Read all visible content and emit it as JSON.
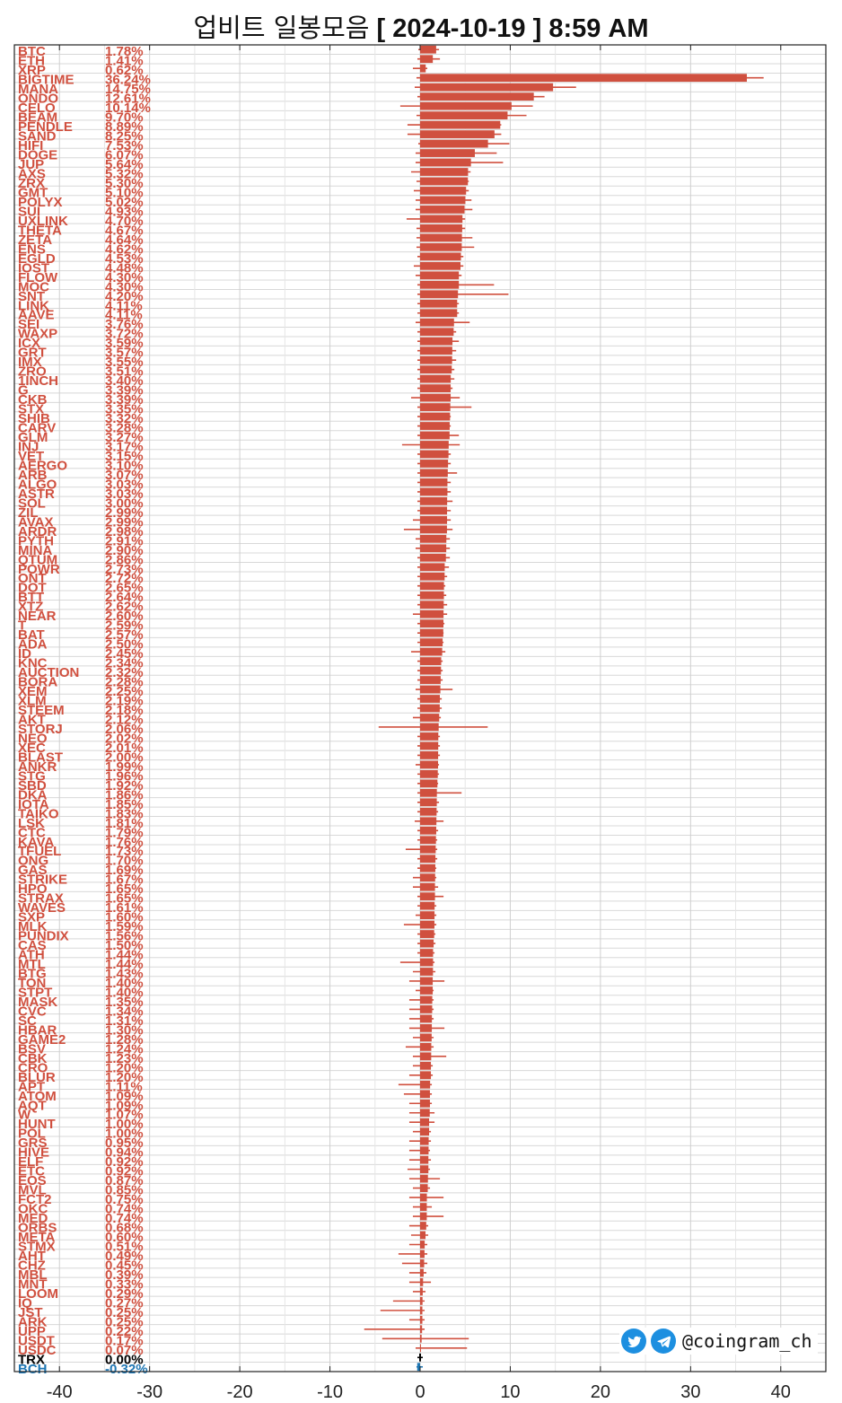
{
  "title": {
    "korean": "업비트 일봉모음",
    "date": "[ 2024-10-19 ]  8:59 AM"
  },
  "brand": {
    "handle": "@coingram_ch",
    "icons": [
      "twitter-icon",
      "telegram-icon"
    ]
  },
  "colors": {
    "up": "#d0503f",
    "flat": "#000000",
    "down": "#1f77b4",
    "grid": "#d8d8d8"
  },
  "chart_data": {
    "type": "bar",
    "orientation": "horizontal",
    "xlim": [
      -45,
      45
    ],
    "xticks": [
      -40,
      -30,
      -20,
      -10,
      0,
      10,
      20,
      30,
      40
    ],
    "grid": true,
    "categories": [
      "BTC",
      "ETH",
      "XRP",
      "BIGTIME",
      "MANA",
      "ONDO",
      "CELO",
      "BEAM",
      "PENDLE",
      "SAND",
      "HIFI",
      "DOGE",
      "JUP",
      "AXS",
      "ZRX",
      "GMT",
      "POLYX",
      "SUI",
      "UXLINK",
      "THETA",
      "ZETA",
      "ENS",
      "EGLD",
      "IOST",
      "FLOW",
      "MOC",
      "SNT",
      "LINK",
      "AAVE",
      "SEI",
      "WAXP",
      "ICX",
      "GRT",
      "IMX",
      "ZRO",
      "1INCH",
      "G",
      "CKB",
      "STX",
      "SHIB",
      "CARV",
      "GLM",
      "INJ",
      "VET",
      "AERGO",
      "ARB",
      "ALGO",
      "ASTR",
      "SOL",
      "ZIL",
      "AVAX",
      "ARDR",
      "PYTH",
      "MINA",
      "QTUM",
      "POWR",
      "ONT",
      "DOT",
      "BTT",
      "XTZ",
      "NEAR",
      "T",
      "BAT",
      "ADA",
      "ID",
      "KNC",
      "AUCTION",
      "BORA",
      "XEM",
      "XLM",
      "STEEM",
      "AKT",
      "STORJ",
      "NEO",
      "XEC",
      "BLAST",
      "ANKR",
      "STG",
      "SBD",
      "DKA",
      "IOTA",
      "TAIKO",
      "LSK",
      "CTC",
      "KAVA",
      "TFUEL",
      "ONG",
      "GAS",
      "STRIKE",
      "HPO",
      "STRAX",
      "WAVES",
      "SXP",
      "MLK",
      "PUNDIX",
      "CAS",
      "ATH",
      "MTL",
      "BTG",
      "TON",
      "STPT",
      "MASK",
      "CVC",
      "SC",
      "HBAR",
      "GAME2",
      "BSV",
      "CBK",
      "CRO",
      "BLUR",
      "APT",
      "ATOM",
      "AQT",
      "W",
      "HUNT",
      "POL",
      "GRS",
      "HIVE",
      "ELF",
      "ETC",
      "EOS",
      "MVL",
      "FCT2",
      "OKC",
      "MED",
      "ORBS",
      "META",
      "STMX",
      "AHT",
      "CHZ",
      "MBL",
      "MNT",
      "LOOM",
      "IQ",
      "JST",
      "ARK",
      "UPP",
      "USDT",
      "USDC",
      "TRX",
      "BCH"
    ],
    "values": [
      1.78,
      1.41,
      0.62,
      36.24,
      14.75,
      12.61,
      10.14,
      9.7,
      8.89,
      8.25,
      7.53,
      6.07,
      5.64,
      5.32,
      5.3,
      5.1,
      5.02,
      4.93,
      4.7,
      4.67,
      4.64,
      4.62,
      4.53,
      4.48,
      4.3,
      4.3,
      4.2,
      4.11,
      4.11,
      3.76,
      3.72,
      3.59,
      3.57,
      3.55,
      3.51,
      3.4,
      3.39,
      3.39,
      3.35,
      3.32,
      3.28,
      3.27,
      3.17,
      3.15,
      3.1,
      3.07,
      3.03,
      3.03,
      3.0,
      2.99,
      2.99,
      2.98,
      2.91,
      2.9,
      2.86,
      2.73,
      2.72,
      2.65,
      2.64,
      2.62,
      2.6,
      2.59,
      2.57,
      2.5,
      2.45,
      2.34,
      2.32,
      2.28,
      2.25,
      2.19,
      2.18,
      2.12,
      2.06,
      2.02,
      2.01,
      2.0,
      1.99,
      1.96,
      1.92,
      1.86,
      1.85,
      1.83,
      1.81,
      1.79,
      1.76,
      1.73,
      1.7,
      1.69,
      1.67,
      1.65,
      1.65,
      1.61,
      1.6,
      1.59,
      1.56,
      1.5,
      1.44,
      1.44,
      1.43,
      1.4,
      1.4,
      1.35,
      1.34,
      1.31,
      1.3,
      1.28,
      1.24,
      1.23,
      1.2,
      1.2,
      1.11,
      1.09,
      1.09,
      1.07,
      1.0,
      1.0,
      0.95,
      0.94,
      0.92,
      0.92,
      0.87,
      0.85,
      0.75,
      0.74,
      0.74,
      0.68,
      0.6,
      0.51,
      0.49,
      0.45,
      0.39,
      0.33,
      0.29,
      0.27,
      0.25,
      0.25,
      0.22,
      0.17,
      0.07,
      0.0,
      -0.32
    ],
    "value_labels": [
      "1.78%",
      "1.41%",
      "0.62%",
      "36.24%",
      "14.75%",
      "12.61%",
      "10.14%",
      "9.70%",
      "8.89%",
      "8.25%",
      "7.53%",
      "6.07%",
      "5.64%",
      "5.32%",
      "5.30%",
      "5.10%",
      "5.02%",
      "4.93%",
      "4.70%",
      "4.67%",
      "4.64%",
      "4.62%",
      "4.53%",
      "4.48%",
      "4.30%",
      "4.30%",
      "4.20%",
      "4.11%",
      "4.11%",
      "3.76%",
      "3.72%",
      "3.59%",
      "3.57%",
      "3.55%",
      "3.51%",
      "3.40%",
      "3.39%",
      "3.39%",
      "3.35%",
      "3.32%",
      "3.28%",
      "3.27%",
      "3.17%",
      "3.15%",
      "3.10%",
      "3.07%",
      "3.03%",
      "3.03%",
      "3.00%",
      "2.99%",
      "2.99%",
      "2.98%",
      "2.91%",
      "2.90%",
      "2.86%",
      "2.73%",
      "2.72%",
      "2.65%",
      "2.64%",
      "2.62%",
      "2.60%",
      "2.59%",
      "2.57%",
      "2.50%",
      "2.45%",
      "2.34%",
      "2.32%",
      "2.28%",
      "2.25%",
      "2.19%",
      "2.18%",
      "2.12%",
      "2.06%",
      "2.02%",
      "2.01%",
      "2.00%",
      "1.99%",
      "1.96%",
      "1.92%",
      "1.86%",
      "1.85%",
      "1.83%",
      "1.81%",
      "1.79%",
      "1.76%",
      "1.73%",
      "1.70%",
      "1.69%",
      "1.67%",
      "1.65%",
      "1.65%",
      "1.61%",
      "1.60%",
      "1.59%",
      "1.56%",
      "1.50%",
      "1.44%",
      "1.44%",
      "1.43%",
      "1.40%",
      "1.40%",
      "1.35%",
      "1.34%",
      "1.31%",
      "1.30%",
      "1.28%",
      "1.24%",
      "1.23%",
      "1.20%",
      "1.20%",
      "1.11%",
      "1.09%",
      "1.09%",
      "1.07%",
      "1.00%",
      "1.00%",
      "0.95%",
      "0.94%",
      "0.92%",
      "0.92%",
      "0.87%",
      "0.85%",
      "0.75%",
      "0.74%",
      "0.74%",
      "0.68%",
      "0.60%",
      "0.51%",
      "0.49%",
      "0.45%",
      "0.39%",
      "0.33%",
      "0.29%",
      "0.27%",
      "0.25%",
      "0.25%",
      "0.22%",
      "0.17%",
      "0.07%",
      "0.00%",
      "-0.32%"
    ],
    "range_low": [
      -0.2,
      -0.3,
      -0.8,
      -0.4,
      -0.6,
      -0.3,
      -2.2,
      -0.4,
      -1.4,
      -1.4,
      -0.2,
      -0.5,
      -0.5,
      -1.0,
      -0.4,
      -0.7,
      -0.5,
      -0.5,
      -1.5,
      -0.4,
      -0.4,
      -0.4,
      -0.3,
      -0.7,
      -0.5,
      -0.3,
      -0.3,
      -0.3,
      -0.3,
      -0.5,
      -0.3,
      -0.3,
      -0.3,
      -0.3,
      -0.3,
      -0.3,
      -0.3,
      -1.0,
      -0.3,
      -0.3,
      -0.3,
      -0.3,
      -2.0,
      -0.3,
      -0.3,
      -0.3,
      -0.3,
      -0.3,
      -0.3,
      -0.3,
      -0.8,
      -1.8,
      -0.5,
      -0.5,
      -0.3,
      -0.3,
      -0.3,
      -0.3,
      -0.3,
      -0.3,
      -0.8,
      -0.3,
      -0.3,
      -0.3,
      -1.0,
      -0.3,
      -0.3,
      -0.3,
      -0.5,
      -0.3,
      -0.3,
      -0.8,
      -4.6,
      -0.3,
      -0.3,
      -0.3,
      -0.5,
      -0.3,
      -0.3,
      -0.3,
      -0.3,
      -0.3,
      -0.6,
      -0.3,
      -0.3,
      -1.6,
      -0.3,
      -0.3,
      -0.8,
      -0.8,
      -0.3,
      -0.3,
      -0.5,
      -1.8,
      -0.3,
      -0.3,
      -0.3,
      -2.2,
      -0.8,
      -1.2,
      -0.5,
      -1.2,
      -1.2,
      -1.2,
      -1.2,
      -0.8,
      -1.6,
      -0.8,
      -0.8,
      -1.2,
      -2.4,
      -1.8,
      -1.2,
      -1.2,
      -1.2,
      -0.8,
      -1.2,
      -1.2,
      -1.2,
      -1.4,
      -1.2,
      -0.8,
      -1.2,
      -0.8,
      -0.8,
      -1.2,
      -1.0,
      -1.2,
      -2.4,
      -2.0,
      -1.2,
      -1.2,
      -0.8,
      -3.0,
      -4.4,
      -1.2,
      -6.2,
      -4.2,
      -0.5,
      -0.3,
      -0.4,
      -1.2
    ],
    "range_high": [
      2.1,
      2.2,
      0.8,
      38.1,
      17.3,
      13.8,
      12.5,
      11.8,
      9.0,
      9.0,
      9.9,
      8.5,
      9.2,
      5.6,
      5.4,
      5.4,
      5.7,
      5.8,
      5.0,
      5.0,
      5.8,
      6.0,
      4.8,
      4.8,
      4.6,
      8.2,
      9.8,
      4.3,
      4.3,
      5.5,
      4.0,
      4.3,
      4.0,
      4.0,
      3.8,
      3.8,
      3.6,
      4.4,
      5.7,
      3.4,
      3.4,
      4.3,
      4.4,
      3.4,
      3.4,
      4.1,
      3.4,
      3.4,
      3.6,
      3.4,
      3.4,
      3.6,
      3.3,
      3.3,
      3.3,
      3.2,
      3.0,
      2.8,
      2.9,
      3.0,
      3.0,
      2.7,
      2.6,
      2.6,
      2.8,
      2.5,
      2.5,
      2.5,
      3.6,
      2.4,
      2.4,
      2.3,
      7.5,
      2.2,
      2.2,
      2.2,
      2.1,
      2.1,
      2.0,
      4.6,
      2.1,
      2.0,
      2.6,
      2.0,
      1.9,
      1.9,
      1.9,
      1.8,
      1.8,
      2.0,
      2.6,
      1.8,
      1.8,
      1.8,
      1.7,
      1.7,
      1.6,
      1.6,
      1.7,
      2.7,
      1.5,
      1.5,
      1.5,
      1.5,
      2.7,
      1.5,
      1.5,
      2.9,
      1.4,
      1.4,
      1.3,
      1.3,
      1.3,
      1.6,
      1.6,
      1.2,
      1.2,
      1.1,
      1.2,
      1.1,
      2.2,
      1.1,
      2.6,
      1.3,
      2.6,
      0.9,
      0.9,
      0.8,
      0.8,
      0.8,
      0.7,
      1.2,
      0.6,
      0.5,
      0.5,
      0.5,
      0.5,
      5.4,
      5.2,
      0.3,
      0.3,
      0.4,
      1.6
    ]
  }
}
